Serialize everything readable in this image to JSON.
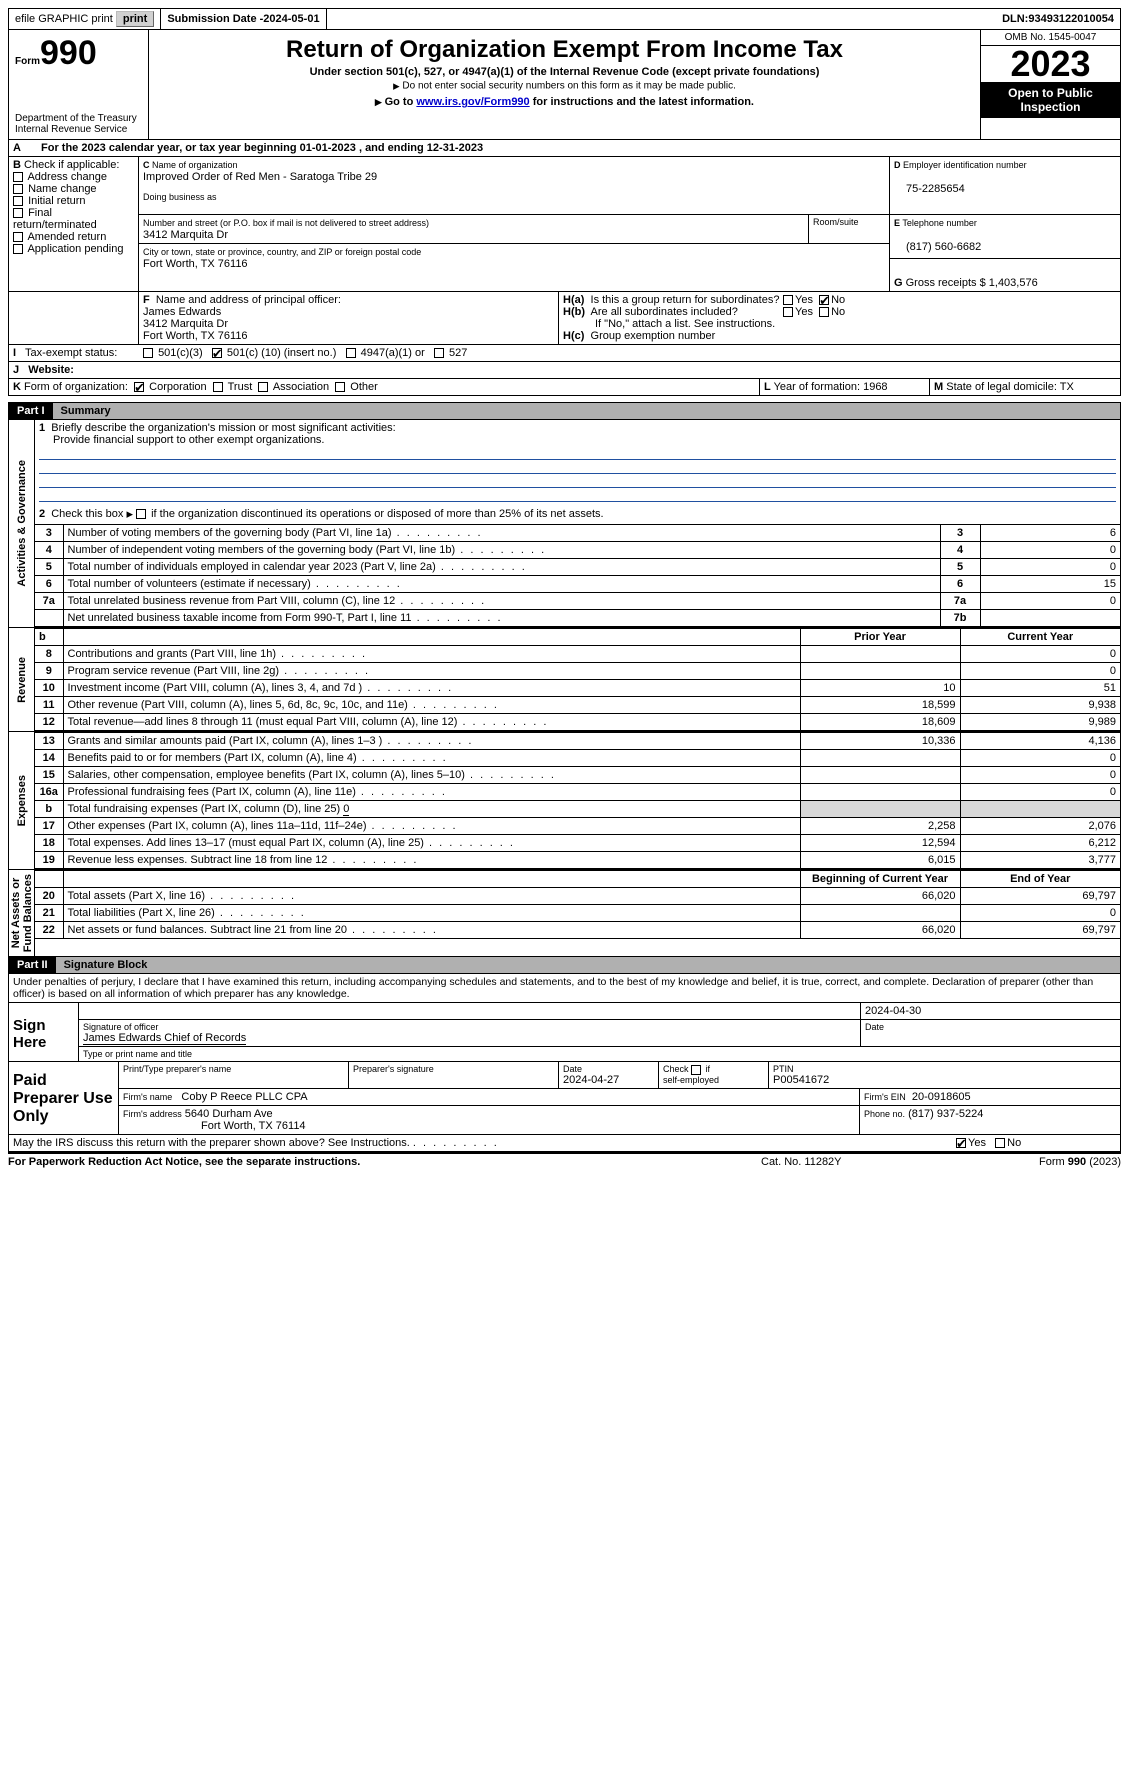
{
  "topbar": {
    "efile": "efile GRAPHIC print",
    "submission_label": "Submission Date - ",
    "submission_date": "2024-05-01",
    "dln_label": "DLN: ",
    "dln": "93493122010054"
  },
  "header": {
    "form_prefix": "Form",
    "form_no": "990",
    "dept": "Department of the Treasury",
    "irs": "Internal Revenue Service",
    "title": "Return of Organization Exempt From Income Tax",
    "sub1": "Under section 501(c), 527, or 4947(a)(1) of the Internal Revenue Code (except private foundations)",
    "sub2": "Do not enter social security numbers on this form as it may be made public.",
    "sub3_pre": "Go to ",
    "sub3_link": "www.irs.gov/Form990",
    "sub3_post": " for instructions and the latest information.",
    "omb": "OMB No. 1545-0047",
    "year": "2023",
    "open": "Open to Public Inspection"
  },
  "A": {
    "text_pre": "For the 2023 calendar year, or tax year beginning ",
    "begin": "01-01-2023",
    "mid": " , and ending ",
    "end": "12-31-2023"
  },
  "B": {
    "label": "Check if applicable:",
    "items": [
      "Address change",
      "Name change",
      "Initial return",
      "Final return/terminated",
      "Amended return",
      "Application pending"
    ]
  },
  "C": {
    "name_label": "Name of organization",
    "name": "Improved Order of Red Men - Saratoga Tribe 29",
    "dba_label": "Doing business as",
    "addr_label": "Number and street (or P.O. box if mail is not delivered to street address)",
    "room_label": "Room/suite",
    "addr": "3412 Marquita Dr",
    "city_label": "City or town, state or province, country, and ZIP or foreign postal code",
    "city": "Fort Worth, TX  76116"
  },
  "D": {
    "label": "Employer identification number",
    "val": "75-2285654"
  },
  "E": {
    "label": "Telephone number",
    "val": "(817) 560-6682"
  },
  "G": {
    "label": "Gross receipts $ ",
    "val": "1,403,576"
  },
  "F": {
    "label": "Name and address of principal officer:",
    "name": "James Edwards",
    "addr1": "3412 Marquita Dr",
    "addr2": "Fort Worth, TX  76116"
  },
  "H": {
    "a": "Is this a group return for subordinates?",
    "b": "Are all subordinates included?",
    "b_note": "If \"No,\" attach a list. See instructions.",
    "c": "Group exemption number",
    "yes": "Yes",
    "no": "No"
  },
  "I": {
    "label": "Tax-exempt status:",
    "opt1": "501(c)(3)",
    "opt2_pre": "501(c) (",
    "opt2_no": "10",
    "opt2_post": ") (insert no.)",
    "opt3": "4947(a)(1) or",
    "opt4": "527"
  },
  "J": {
    "label": "Website:"
  },
  "K": {
    "label": "Form of organization:",
    "opts": [
      "Corporation",
      "Trust",
      "Association",
      "Other"
    ]
  },
  "L": {
    "label": "Year of formation: ",
    "val": "1968"
  },
  "M": {
    "label": "State of legal domicile: ",
    "val": "TX"
  },
  "part1": {
    "tag": "Part I",
    "title": "Summary"
  },
  "sec_labels": {
    "ag": "Activities & Governance",
    "rev": "Revenue",
    "exp": "Expenses",
    "na": "Net Assets or\nFund Balances"
  },
  "q1": {
    "label": "Briefly describe the organization's mission or most significant activities:",
    "val": "Provide financial support to other exempt organizations."
  },
  "q2": "Check this box           if the organization discontinued its operations or disposed of more than 25% of its net assets.",
  "gov_rows": [
    {
      "n": "3",
      "t": "Number of voting members of the governing body (Part VI, line 1a)",
      "box": "3",
      "v": "6"
    },
    {
      "n": "4",
      "t": "Number of independent voting members of the governing body (Part VI, line 1b)",
      "box": "4",
      "v": "0"
    },
    {
      "n": "5",
      "t": "Total number of individuals employed in calendar year 2023 (Part V, line 2a)",
      "box": "5",
      "v": "0"
    },
    {
      "n": "6",
      "t": "Total number of volunteers (estimate if necessary)",
      "box": "6",
      "v": "15"
    },
    {
      "n": "7a",
      "t": "Total unrelated business revenue from Part VIII, column (C), line 12",
      "box": "7a",
      "v": "0"
    },
    {
      "n": "",
      "t": "Net unrelated business taxable income from Form 990-T, Part I, line 11",
      "box": "7b",
      "v": ""
    }
  ],
  "col_hdr": {
    "b": "b",
    "prior": "Prior Year",
    "curr": "Current Year"
  },
  "rev_rows": [
    {
      "n": "8",
      "t": "Contributions and grants (Part VIII, line 1h)",
      "p": "",
      "c": "0"
    },
    {
      "n": "9",
      "t": "Program service revenue (Part VIII, line 2g)",
      "p": "",
      "c": "0"
    },
    {
      "n": "10",
      "t": "Investment income (Part VIII, column (A), lines 3, 4, and 7d )",
      "p": "10",
      "c": "51"
    },
    {
      "n": "11",
      "t": "Other revenue (Part VIII, column (A), lines 5, 6d, 8c, 9c, 10c, and 11e)",
      "p": "18,599",
      "c": "9,938"
    },
    {
      "n": "12",
      "t": "Total revenue—add lines 8 through 11 (must equal Part VIII, column (A), line 12)",
      "p": "18,609",
      "c": "9,989"
    }
  ],
  "exp_rows": [
    {
      "n": "13",
      "t": "Grants and similar amounts paid (Part IX, column (A), lines 1–3 )",
      "p": "10,336",
      "c": "4,136"
    },
    {
      "n": "14",
      "t": "Benefits paid to or for members (Part IX, column (A), line 4)",
      "p": "",
      "c": "0"
    },
    {
      "n": "15",
      "t": "Salaries, other compensation, employee benefits (Part IX, column (A), lines 5–10)",
      "p": "",
      "c": "0"
    },
    {
      "n": "16a",
      "t": "Professional fundraising fees (Part IX, column (A), line 11e)",
      "p": "",
      "c": "0"
    },
    {
      "n": "b",
      "t": "Total fundraising expenses (Part IX, column (D), line 25) ",
      "val": "0",
      "p": "shade",
      "c": "shade"
    },
    {
      "n": "17",
      "t": "Other expenses (Part IX, column (A), lines 11a–11d, 11f–24e)",
      "p": "2,258",
      "c": "2,076"
    },
    {
      "n": "18",
      "t": "Total expenses. Add lines 13–17 (must equal Part IX, column (A), line 25)",
      "p": "12,594",
      "c": "6,212"
    },
    {
      "n": "19",
      "t": "Revenue less expenses. Subtract line 18 from line 12",
      "p": "6,015",
      "c": "3,777"
    }
  ],
  "na_hdr": {
    "b": "Beginning of Current Year",
    "e": "End of Year"
  },
  "na_rows": [
    {
      "n": "20",
      "t": "Total assets (Part X, line 16)",
      "p": "66,020",
      "c": "69,797"
    },
    {
      "n": "21",
      "t": "Total liabilities (Part X, line 26)",
      "p": "",
      "c": "0"
    },
    {
      "n": "22",
      "t": "Net assets or fund balances. Subtract line 21 from line 20",
      "p": "66,020",
      "c": "69,797"
    }
  ],
  "part2": {
    "tag": "Part II",
    "title": "Signature Block"
  },
  "perjury": "Under penalties of perjury, I declare that I have examined this return, including accompanying schedules and statements, and to the best of my knowledge and belief, it is true, correct, and complete. Declaration of preparer (other than officer) is based on all information of which preparer has any knowledge.",
  "sign": {
    "here": "Sign Here",
    "sig_label": "Signature of officer",
    "date_label": "Date",
    "date": "2024-04-30",
    "name": "James Edwards  Chief of Records",
    "type_label": "Type or print name and title"
  },
  "prep": {
    "title": "Paid Preparer Use Only",
    "pt_label": "Print/Type preparer's name",
    "sig_label": "Preparer's signature",
    "date_label": "Date",
    "date": "2024-04-27",
    "check_label": "Check           if self-employed",
    "ptin_label": "PTIN",
    "ptin": "P00541672",
    "firm_name_label": "Firm's name",
    "firm_name": "Coby P Reece PLLC CPA",
    "firm_ein_label": "Firm's EIN",
    "firm_ein": "20-0918605",
    "firm_addr_label": "Firm's address",
    "firm_addr1": "5640 Durham Ave",
    "firm_addr2": "Fort Worth, TX  76114",
    "phone_label": "Phone no.",
    "phone": "(817) 937-5224"
  },
  "discuss": {
    "q": "May the IRS discuss this return with the preparer shown above? See Instructions.",
    "yes": "Yes",
    "no": "No"
  },
  "footer": {
    "left": "For Paperwork Reduction Act Notice, see the separate instructions.",
    "mid": "Cat. No. 11282Y",
    "right_pre": "Form ",
    "right_b": "990",
    "right_post": " (2023)"
  }
}
